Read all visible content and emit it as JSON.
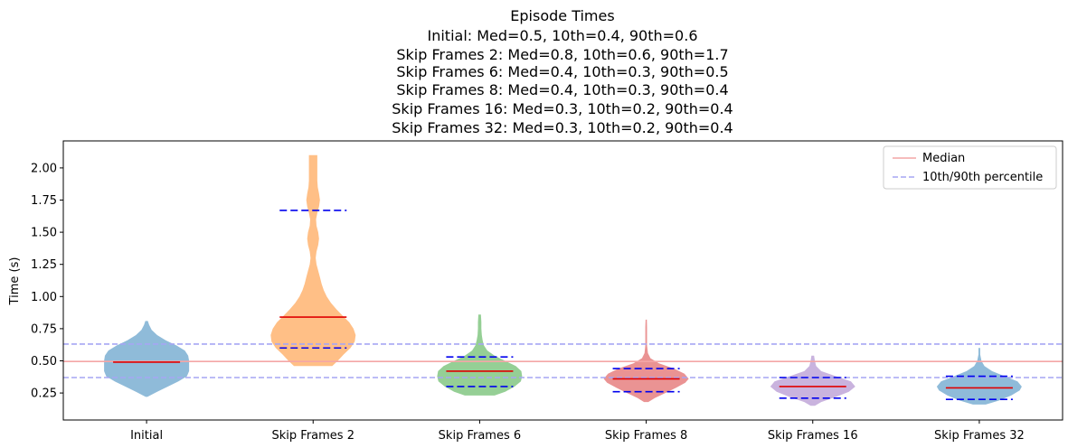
{
  "chart_data": {
    "type": "violin",
    "title_lines": [
      "Episode Times",
      "Initial: Med=0.5, 10th=0.4, 90th=0.6",
      "Skip Frames 2: Med=0.8, 10th=0.6, 90th=1.7",
      "Skip Frames 6: Med=0.4, 10th=0.3, 90th=0.5",
      "Skip Frames 8: Med=0.4, 10th=0.3, 90th=0.4",
      "Skip Frames 16: Med=0.3, 10th=0.2, 90th=0.4",
      "Skip Frames 32: Med=0.3, 10th=0.2, 90th=0.4"
    ],
    "xlabel": "",
    "ylabel": "Time (s)",
    "ylim": [
      0.04,
      2.21
    ],
    "yticks": [
      "0.25",
      "0.50",
      "0.75",
      "1.00",
      "1.25",
      "1.50",
      "1.75",
      "2.00"
    ],
    "grid": false,
    "legend_position": "top-right",
    "legend": [
      {
        "label": "Median",
        "style": "solid",
        "color": "#f4a6a6"
      },
      {
        "label": "10th/90th percentile",
        "style": "dashed",
        "color": "#a6a6f4"
      }
    ],
    "reference_lines": {
      "median": 0.495,
      "p10": 0.37,
      "p90": 0.63
    },
    "categories": [
      "Initial",
      "Skip Frames 2",
      "Skip Frames 6",
      "Skip Frames 8",
      "Skip Frames 16",
      "Skip Frames 32"
    ],
    "series": [
      {
        "category": "Initial",
        "color": "#1f77b4",
        "median": 0.49,
        "p10": null,
        "p90": null,
        "density": [
          [
            0.22,
            0.02
          ],
          [
            0.26,
            0.25
          ],
          [
            0.3,
            0.5
          ],
          [
            0.34,
            0.75
          ],
          [
            0.38,
            0.95
          ],
          [
            0.42,
            1.0
          ],
          [
            0.46,
            1.0
          ],
          [
            0.5,
            1.0
          ],
          [
            0.54,
            0.98
          ],
          [
            0.58,
            0.9
          ],
          [
            0.62,
            0.7
          ],
          [
            0.66,
            0.45
          ],
          [
            0.7,
            0.25
          ],
          [
            0.74,
            0.12
          ],
          [
            0.78,
            0.06
          ],
          [
            0.81,
            0.03
          ]
        ]
      },
      {
        "category": "Skip Frames 2",
        "color": "#ff7f0e",
        "median": 0.84,
        "p10": 0.6,
        "p90": 1.67,
        "density": [
          [
            0.46,
            0.45
          ],
          [
            0.5,
            0.58
          ],
          [
            0.55,
            0.72
          ],
          [
            0.6,
            0.88
          ],
          [
            0.65,
            0.98
          ],
          [
            0.7,
            1.0
          ],
          [
            0.75,
            0.95
          ],
          [
            0.8,
            0.85
          ],
          [
            0.85,
            0.7
          ],
          [
            0.9,
            0.55
          ],
          [
            0.95,
            0.42
          ],
          [
            1.0,
            0.32
          ],
          [
            1.05,
            0.25
          ],
          [
            1.1,
            0.2
          ],
          [
            1.15,
            0.16
          ],
          [
            1.2,
            0.12
          ],
          [
            1.25,
            0.08
          ],
          [
            1.3,
            0.06
          ],
          [
            1.35,
            0.08
          ],
          [
            1.4,
            0.12
          ],
          [
            1.45,
            0.14
          ],
          [
            1.5,
            0.12
          ],
          [
            1.55,
            0.08
          ],
          [
            1.6,
            0.07
          ],
          [
            1.65,
            0.1
          ],
          [
            1.7,
            0.14
          ],
          [
            1.75,
            0.16
          ],
          [
            1.8,
            0.14
          ],
          [
            1.85,
            0.11
          ],
          [
            1.9,
            0.1
          ],
          [
            2.0,
            0.1
          ],
          [
            2.1,
            0.1
          ]
        ]
      },
      {
        "category": "Skip Frames 6",
        "color": "#2ca02c",
        "median": 0.42,
        "p10": 0.3,
        "p90": 0.53,
        "density": [
          [
            0.23,
            0.35
          ],
          [
            0.26,
            0.6
          ],
          [
            0.3,
            0.82
          ],
          [
            0.34,
            0.97
          ],
          [
            0.38,
            1.0
          ],
          [
            0.42,
            0.98
          ],
          [
            0.46,
            0.85
          ],
          [
            0.5,
            0.6
          ],
          [
            0.54,
            0.35
          ],
          [
            0.58,
            0.18
          ],
          [
            0.62,
            0.1
          ],
          [
            0.66,
            0.07
          ],
          [
            0.7,
            0.05
          ],
          [
            0.75,
            0.04
          ],
          [
            0.8,
            0.04
          ],
          [
            0.86,
            0.03
          ]
        ]
      },
      {
        "category": "Skip Frames 8",
        "color": "#d62728",
        "median": 0.36,
        "p10": 0.26,
        "p90": 0.44,
        "density": [
          [
            0.18,
            0.05
          ],
          [
            0.21,
            0.2
          ],
          [
            0.25,
            0.45
          ],
          [
            0.29,
            0.7
          ],
          [
            0.33,
            0.92
          ],
          [
            0.36,
            1.0
          ],
          [
            0.4,
            0.9
          ],
          [
            0.44,
            0.65
          ],
          [
            0.48,
            0.3
          ],
          [
            0.52,
            0.1
          ],
          [
            0.56,
            0.04
          ],
          [
            0.62,
            0.02
          ],
          [
            0.7,
            0.02
          ],
          [
            0.76,
            0.02
          ],
          [
            0.82,
            0.015
          ]
        ]
      },
      {
        "category": "Skip Frames 16",
        "color": "#9467bd",
        "median": 0.3,
        "p10": 0.21,
        "p90": 0.37,
        "density": [
          [
            0.15,
            0.05
          ],
          [
            0.18,
            0.2
          ],
          [
            0.22,
            0.55
          ],
          [
            0.26,
            0.85
          ],
          [
            0.3,
            1.0
          ],
          [
            0.34,
            0.9
          ],
          [
            0.38,
            0.55
          ],
          [
            0.42,
            0.2
          ],
          [
            0.46,
            0.08
          ],
          [
            0.5,
            0.05
          ],
          [
            0.54,
            0.03
          ]
        ]
      },
      {
        "category": "Skip Frames 32",
        "color": "#1f77b4",
        "median": 0.29,
        "p10": 0.2,
        "p90": 0.38,
        "density": [
          [
            0.16,
            0.15
          ],
          [
            0.19,
            0.45
          ],
          [
            0.23,
            0.75
          ],
          [
            0.27,
            0.95
          ],
          [
            0.3,
            1.0
          ],
          [
            0.34,
            0.9
          ],
          [
            0.38,
            0.6
          ],
          [
            0.42,
            0.3
          ],
          [
            0.46,
            0.12
          ],
          [
            0.5,
            0.05
          ],
          [
            0.55,
            0.02
          ],
          [
            0.6,
            0.02
          ]
        ]
      }
    ]
  }
}
